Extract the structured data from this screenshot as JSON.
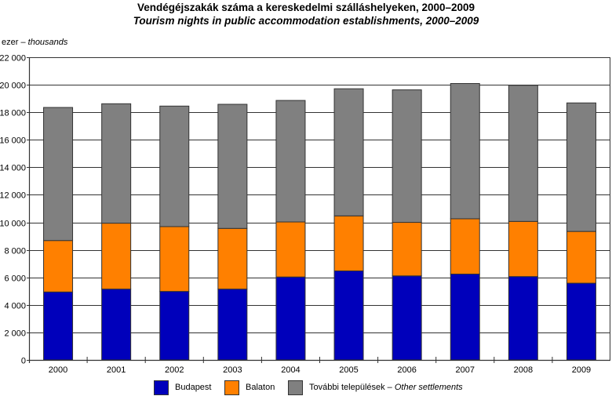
{
  "chart_data": {
    "type": "bar",
    "stacked": true,
    "title": "Vendégéjszakák száma a kereskedelmi szálláshelyeken, 2000–2009",
    "subtitle": "Tourism nights in public accommodation establishments, 2000–2009",
    "ylabel_hu": "ezer – ",
    "ylabel_en": "thousands",
    "xlabel": "",
    "ylim": [
      0,
      22000
    ],
    "yticks": [
      0,
      2000,
      4000,
      6000,
      8000,
      10000,
      12000,
      14000,
      16000,
      18000,
      20000,
      22000
    ],
    "ytick_labels": [
      "0",
      "2 000",
      "4 000",
      "6 000",
      "8 000",
      "10 000",
      "12 000",
      "14 000",
      "16 000",
      "18 000",
      "20 000",
      "22 000"
    ],
    "grid": true,
    "legend_position": "bottom",
    "categories": [
      "2000",
      "2001",
      "2002",
      "2003",
      "2004",
      "2005",
      "2006",
      "2007",
      "2008",
      "2009"
    ],
    "series": [
      {
        "name": "Budapest",
        "color": "#0000bb",
        "values": [
          4940,
          5150,
          4980,
          5150,
          6030,
          6470,
          6110,
          6240,
          6060,
          5580
        ]
      },
      {
        "name": "Balaton",
        "color": "#ff8000",
        "values": [
          3740,
          4790,
          4710,
          4410,
          4000,
          4000,
          3890,
          4020,
          4010,
          3760
        ]
      },
      {
        "name_hu": "További települések – ",
        "name": "Other settlements",
        "color": "#808080",
        "values": [
          9670,
          8680,
          8760,
          9020,
          8830,
          9240,
          9630,
          9830,
          9890,
          9340
        ]
      }
    ]
  }
}
